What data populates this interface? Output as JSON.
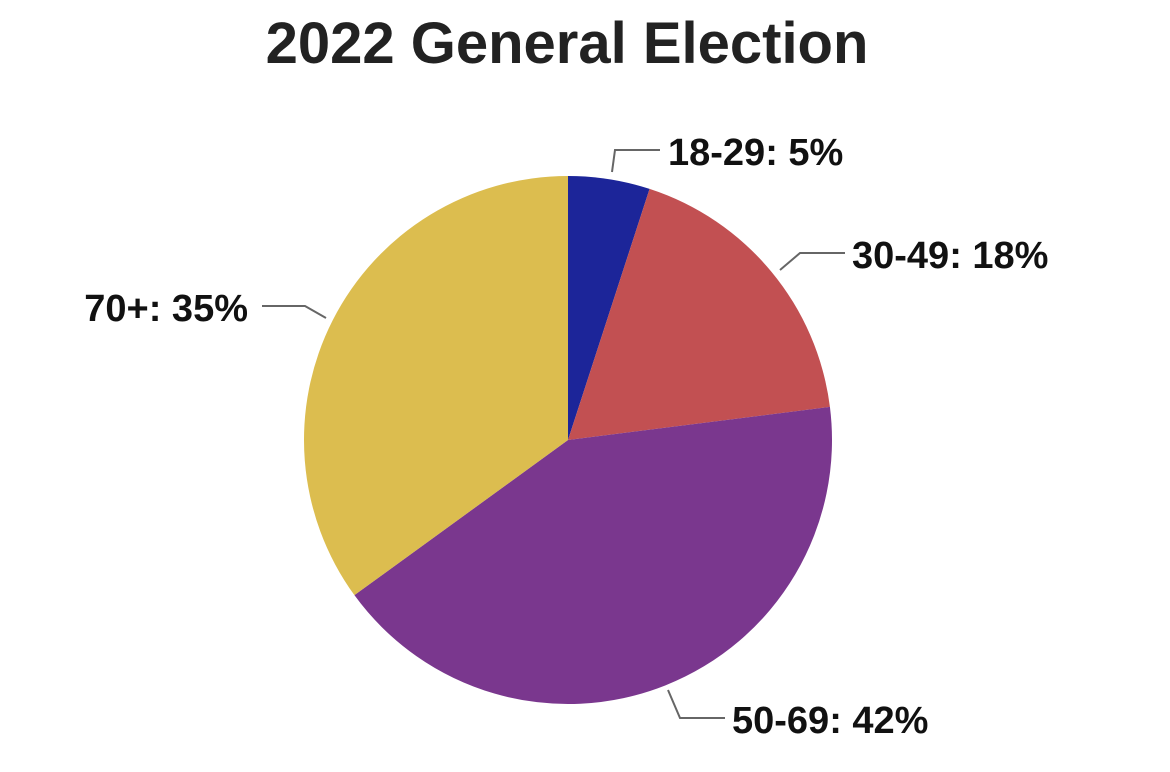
{
  "chart_data": {
    "type": "pie",
    "title": "2022 General Election",
    "slices": [
      {
        "label": "18-29: 5%",
        "category": "18-29",
        "value": 5,
        "color": "#1c2599"
      },
      {
        "label": "30-49: 18%",
        "category": "30-49",
        "value": 18,
        "color": "#c25052"
      },
      {
        "label": "50-69: 42%",
        "category": "50-69",
        "value": 42,
        "color": "#7a378e"
      },
      {
        "label": "70+: 35%",
        "category": "70+",
        "value": 35,
        "color": "#dcbd4f"
      }
    ]
  }
}
